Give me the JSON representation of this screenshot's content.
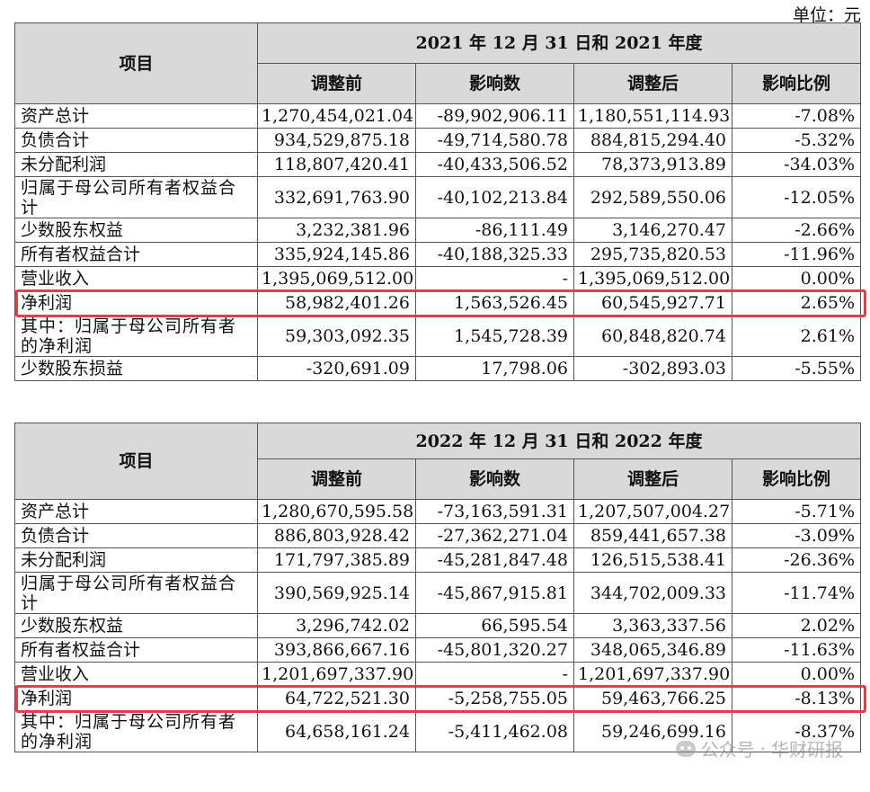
{
  "unit_label": "单位：元",
  "watermark": {
    "text1": "公众号",
    "sep": "·",
    "text2": "华财研报"
  },
  "tables": [
    {
      "item_header": "项目",
      "period": "2021 年 12 月 31 日和 2021 年度",
      "col_headers": [
        "调整前",
        "影响数",
        "调整后",
        "影响比例"
      ],
      "rows": [
        {
          "label": "资产总计",
          "before": "1,270,454,021.04",
          "impact": "-89,902,906.11",
          "after": "1,180,551,114.93",
          "ratio": "-7.08%"
        },
        {
          "label": "负债合计",
          "before": "934,529,875.18",
          "impact": "-49,714,580.78",
          "after": "884,815,294.40",
          "ratio": "-5.32%"
        },
        {
          "label": "未分配利润",
          "before": "118,807,420.41",
          "impact": "-40,433,506.52",
          "after": "78,373,913.89",
          "ratio": "-34.03%"
        },
        {
          "label": "归属于母公司所有者权益合计",
          "before": "332,691,763.90",
          "impact": "-40,102,213.84",
          "after": "292,589,550.06",
          "ratio": "-12.05%"
        },
        {
          "label": "少数股东权益",
          "before": "3,232,381.96",
          "impact": "-86,111.49",
          "after": "3,146,270.47",
          "ratio": "-2.66%"
        },
        {
          "label": "所有者权益合计",
          "before": "335,924,145.86",
          "impact": "-40,188,325.33",
          "after": "295,735,820.53",
          "ratio": "-11.96%"
        },
        {
          "label": "营业收入",
          "before": "1,395,069,512.00",
          "impact": "-",
          "after": "1,395,069,512.00",
          "ratio": "0.00%"
        },
        {
          "label": "净利润",
          "before": "58,982,401.26",
          "impact": "1,563,526.45",
          "after": "60,545,927.71",
          "ratio": "2.65%"
        },
        {
          "label": "其中：归属于母公司所有者的净利润",
          "before": "59,303,092.35",
          "impact": "1,545,728.39",
          "after": "60,848,820.74",
          "ratio": "2.61%"
        },
        {
          "label": "少数股东损益",
          "before": "-320,691.09",
          "impact": "17,798.06",
          "after": "-302,893.03",
          "ratio": "-5.55%"
        }
      ]
    },
    {
      "item_header": "项目",
      "period": "2022 年 12 月 31 日和 2022 年度",
      "col_headers": [
        "调整前",
        "影响数",
        "调整后",
        "影响比例"
      ],
      "rows": [
        {
          "label": "资产总计",
          "before": "1,280,670,595.58",
          "impact": "-73,163,591.31",
          "after": "1,207,507,004.27",
          "ratio": "-5.71%"
        },
        {
          "label": "负债合计",
          "before": "886,803,928.42",
          "impact": "-27,362,271.04",
          "after": "859,441,657.38",
          "ratio": "-3.09%"
        },
        {
          "label": "未分配利润",
          "before": "171,797,385.89",
          "impact": "-45,281,847.48",
          "after": "126,515,538.41",
          "ratio": "-26.36%"
        },
        {
          "label": "归属于母公司所有者权益合计",
          "before": "390,569,925.14",
          "impact": "-45,867,915.81",
          "after": "344,702,009.33",
          "ratio": "-11.74%"
        },
        {
          "label": "少数股东权益",
          "before": "3,296,742.02",
          "impact": "66,595.54",
          "after": "3,363,337.56",
          "ratio": "2.02%"
        },
        {
          "label": "所有者权益合计",
          "before": "393,866,667.16",
          "impact": "-45,801,320.27",
          "after": "348,065,346.89",
          "ratio": "-11.63%"
        },
        {
          "label": "营业收入",
          "before": "1,201,697,337.90",
          "impact": "-",
          "after": "1,201,697,337.90",
          "ratio": "0.00%"
        },
        {
          "label": "净利润",
          "before": "64,722,521.30",
          "impact": "-5,258,755.05",
          "after": "59,463,766.25",
          "ratio": "-8.13%"
        },
        {
          "label": "其中：归属于母公司所有者的净利润",
          "before": "64,658,161.24",
          "impact": "-5,411,462.08",
          "after": "59,246,699.16",
          "ratio": "-8.37%"
        }
      ]
    }
  ],
  "colors": {
    "header_bg": "#d9d9d9",
    "highlight": "#e0404a",
    "border": "#555555"
  }
}
